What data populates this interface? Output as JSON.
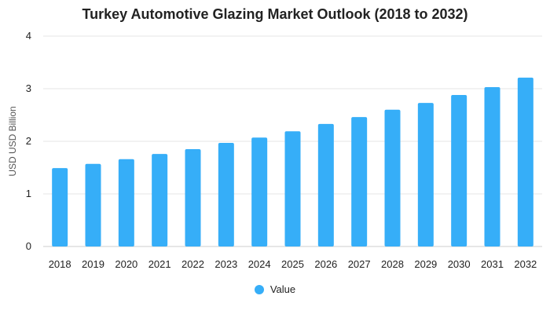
{
  "chart_data": {
    "type": "bar",
    "title": "Turkey Automotive Glazing Market Outlook (2018 to 2032)",
    "xlabel": "",
    "ylabel": "USD USD Billion",
    "ylim": [
      0,
      4
    ],
    "yticks": [
      0,
      1,
      2,
      3,
      4
    ],
    "grid": true,
    "legend_position": "bottom",
    "categories": [
      "2018",
      "2019",
      "2020",
      "2021",
      "2022",
      "2023",
      "2024",
      "2025",
      "2026",
      "2027",
      "2028",
      "2029",
      "2030",
      "2031",
      "2032"
    ],
    "series": [
      {
        "name": "Value",
        "color": "#36aef8",
        "values": [
          1.49,
          1.57,
          1.66,
          1.76,
          1.85,
          1.97,
          2.07,
          2.19,
          2.33,
          2.46,
          2.6,
          2.73,
          2.88,
          3.03,
          3.21
        ]
      }
    ]
  }
}
